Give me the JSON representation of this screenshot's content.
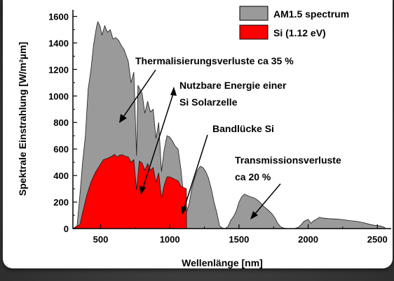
{
  "chart_data": {
    "type": "area",
    "xlabel": "Wellenlänge [nm]",
    "ylabel": "Spektrale Einstrahlung [W/m²µm]",
    "xlim": [
      300,
      2600
    ],
    "ylim": [
      0,
      1650
    ],
    "x_ticks": [
      500,
      1000,
      1500,
      2000,
      2500
    ],
    "y_ticks": [
      0,
      200,
      400,
      600,
      800,
      1000,
      1200,
      1400,
      1600
    ],
    "grid": false,
    "legend_position": "top-right",
    "series": [
      {
        "name": "AM1.5 spectrum",
        "color": "#9a9a9a",
        "points": [
          [
            300,
            0
          ],
          [
            330,
            20
          ],
          [
            350,
            250
          ],
          [
            370,
            500
          ],
          [
            390,
            700
          ],
          [
            410,
            1050
          ],
          [
            430,
            1200
          ],
          [
            450,
            1390
          ],
          [
            470,
            1520
          ],
          [
            480,
            1560
          ],
          [
            495,
            1530
          ],
          [
            510,
            1460
          ],
          [
            530,
            1530
          ],
          [
            550,
            1480
          ],
          [
            570,
            1500
          ],
          [
            590,
            1430
          ],
          [
            610,
            1440
          ],
          [
            630,
            1420
          ],
          [
            650,
            1380
          ],
          [
            670,
            1350
          ],
          [
            690,
            1290
          ],
          [
            700,
            1260
          ],
          [
            720,
            1100
          ],
          [
            740,
            1180
          ],
          [
            760,
            550
          ],
          [
            770,
            1080
          ],
          [
            800,
            1020
          ],
          [
            820,
            870
          ],
          [
            840,
            960
          ],
          [
            860,
            880
          ],
          [
            880,
            900
          ],
          [
            900,
            680
          ],
          [
            920,
            800
          ],
          [
            940,
            430
          ],
          [
            960,
            600
          ],
          [
            980,
            700
          ],
          [
            1000,
            690
          ],
          [
            1020,
            660
          ],
          [
            1040,
            620
          ],
          [
            1060,
            600
          ],
          [
            1080,
            450
          ],
          [
            1100,
            250
          ],
          [
            1120,
            120
          ],
          [
            1140,
            190
          ],
          [
            1160,
            310
          ],
          [
            1180,
            380
          ],
          [
            1200,
            440
          ],
          [
            1220,
            470
          ],
          [
            1240,
            460
          ],
          [
            1260,
            430
          ],
          [
            1280,
            380
          ],
          [
            1300,
            300
          ],
          [
            1320,
            200
          ],
          [
            1340,
            120
          ],
          [
            1360,
            20
          ],
          [
            1380,
            5
          ],
          [
            1400,
            0
          ],
          [
            1420,
            15
          ],
          [
            1440,
            60
          ],
          [
            1460,
            90
          ],
          [
            1480,
            130
          ],
          [
            1500,
            200
          ],
          [
            1520,
            240
          ],
          [
            1540,
            260
          ],
          [
            1560,
            250
          ],
          [
            1580,
            240
          ],
          [
            1600,
            235
          ],
          [
            1620,
            225
          ],
          [
            1640,
            210
          ],
          [
            1660,
            190
          ],
          [
            1680,
            165
          ],
          [
            1700,
            150
          ],
          [
            1720,
            130
          ],
          [
            1740,
            110
          ],
          [
            1760,
            80
          ],
          [
            1780,
            40
          ],
          [
            1800,
            15
          ],
          [
            1820,
            5
          ],
          [
            1850,
            0
          ],
          [
            1900,
            0
          ],
          [
            1930,
            10
          ],
          [
            1950,
            30
          ],
          [
            1970,
            55
          ],
          [
            2000,
            70
          ],
          [
            2020,
            40
          ],
          [
            2040,
            60
          ],
          [
            2060,
            70
          ],
          [
            2080,
            85
          ],
          [
            2100,
            80
          ],
          [
            2150,
            75
          ],
          [
            2200,
            72
          ],
          [
            2250,
            68
          ],
          [
            2300,
            60
          ],
          [
            2350,
            55
          ],
          [
            2400,
            45
          ],
          [
            2450,
            30
          ],
          [
            2480,
            25
          ],
          [
            2500,
            22
          ],
          [
            2520,
            20
          ],
          [
            2550,
            10
          ],
          [
            2560,
            0
          ]
        ]
      },
      {
        "name": "Si (1.12 eV)",
        "color": "#ff0000",
        "points": [
          [
            300,
            0
          ],
          [
            350,
            30
          ],
          [
            370,
            120
          ],
          [
            400,
            250
          ],
          [
            430,
            350
          ],
          [
            460,
            420
          ],
          [
            490,
            470
          ],
          [
            520,
            520
          ],
          [
            550,
            530
          ],
          [
            580,
            545
          ],
          [
            600,
            560
          ],
          [
            620,
            540
          ],
          [
            640,
            555
          ],
          [
            660,
            555
          ],
          [
            680,
            545
          ],
          [
            700,
            540
          ],
          [
            720,
            500
          ],
          [
            740,
            520
          ],
          [
            760,
            290
          ],
          [
            780,
            510
          ],
          [
            800,
            495
          ],
          [
            820,
            440
          ],
          [
            840,
            490
          ],
          [
            860,
            440
          ],
          [
            880,
            460
          ],
          [
            900,
            350
          ],
          [
            920,
            420
          ],
          [
            940,
            230
          ],
          [
            960,
            330
          ],
          [
            980,
            390
          ],
          [
            1000,
            390
          ],
          [
            1020,
            380
          ],
          [
            1040,
            370
          ],
          [
            1060,
            360
          ],
          [
            1080,
            320
          ],
          [
            1100,
            310
          ],
          [
            1120,
            300
          ],
          [
            1121,
            0
          ]
        ]
      }
    ],
    "annotations": [
      {
        "id": "thermal",
        "text": "Thermalisierungsverluste ca 35 %"
      },
      {
        "id": "usable",
        "lines": [
          "Nutzbare Energie einer",
          "Si Solarzelle"
        ]
      },
      {
        "id": "gap",
        "text": "Bandlücke Si"
      },
      {
        "id": "trans",
        "lines": [
          "Transmissionsverluste",
          "ca 20 %"
        ]
      }
    ]
  }
}
